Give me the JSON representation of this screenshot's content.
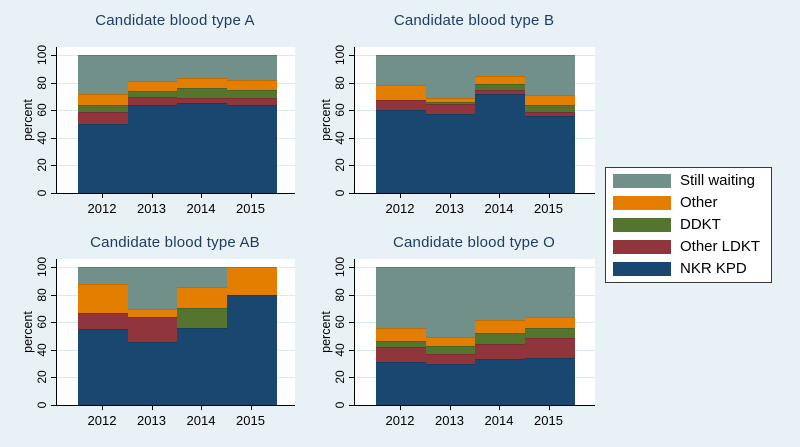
{
  "figure": {
    "background": "#e8f1f6",
    "plot_background": "#ffffff",
    "grid_color": "#dce9f2",
    "axis_color": "#000000",
    "title_color": "#1f3d63"
  },
  "axes": {
    "y_label": "percent",
    "y_ticks": [
      "0",
      "20",
      "40",
      "60",
      "80",
      "100"
    ],
    "x_ticks": [
      "2012",
      "2013",
      "2014",
      "2015"
    ]
  },
  "legend": {
    "items": [
      {
        "label": "Still waiting",
        "color": "#71908a"
      },
      {
        "label": "Other",
        "color": "#e37e00"
      },
      {
        "label": "DDKT",
        "color": "#55752f"
      },
      {
        "label": "Other LDKT",
        "color": "#90353b"
      },
      {
        "label": "NKR KPD",
        "color": "#1a476f"
      }
    ]
  },
  "chart_data": [
    {
      "type": "bar",
      "stacked": true,
      "title": "Candidate blood type A",
      "xlabel": "",
      "ylabel": "percent",
      "ylim": [
        0,
        100
      ],
      "grid": true,
      "categories": [
        "2012",
        "2013",
        "2014",
        "2015"
      ],
      "series": [
        {
          "name": "NKR KPD",
          "color": "#1a476f",
          "values": [
            50,
            63.5,
            65.5,
            64
          ]
        },
        {
          "name": "Other LDKT",
          "color": "#90353b",
          "values": [
            9,
            6,
            3.5,
            4.5
          ]
        },
        {
          "name": "DDKT",
          "color": "#55752f",
          "values": [
            5,
            4.5,
            7,
            6
          ]
        },
        {
          "name": "Other",
          "color": "#e37e00",
          "values": [
            7.5,
            7,
            7.5,
            7.5
          ]
        },
        {
          "name": "Still waiting",
          "color": "#71908a",
          "values": [
            28.5,
            19,
            16.5,
            18
          ]
        }
      ]
    },
    {
      "type": "bar",
      "stacked": true,
      "title": "Candidate blood type B",
      "xlabel": "",
      "ylabel": "percent",
      "ylim": [
        0,
        100
      ],
      "grid": true,
      "categories": [
        "2012",
        "2013",
        "2014",
        "2015"
      ],
      "series": [
        {
          "name": "NKR KPD",
          "color": "#1a476f",
          "values": [
            60.5,
            57,
            72,
            56
          ]
        },
        {
          "name": "Other LDKT",
          "color": "#90353b",
          "values": [
            7,
            7.5,
            3,
            3
          ]
        },
        {
          "name": "DDKT",
          "color": "#55752f",
          "values": [
            0,
            1.5,
            4,
            5
          ]
        },
        {
          "name": "Other",
          "color": "#e37e00",
          "values": [
            10.5,
            3,
            6,
            7
          ]
        },
        {
          "name": "Still waiting",
          "color": "#71908a",
          "values": [
            22,
            31,
            15,
            29
          ]
        }
      ]
    },
    {
      "type": "bar",
      "stacked": true,
      "title": "Candidate blood type AB",
      "xlabel": "",
      "ylabel": "percent",
      "ylim": [
        0,
        100
      ],
      "grid": true,
      "categories": [
        "2012",
        "2013",
        "2014",
        "2015"
      ],
      "series": [
        {
          "name": "NKR KPD",
          "color": "#1a476f",
          "values": [
            55,
            46,
            56,
            80
          ]
        },
        {
          "name": "Other LDKT",
          "color": "#90353b",
          "values": [
            12,
            18,
            0,
            0
          ]
        },
        {
          "name": "DDKT",
          "color": "#55752f",
          "values": [
            0,
            0,
            14,
            0
          ]
        },
        {
          "name": "Other",
          "color": "#e37e00",
          "values": [
            21,
            5.5,
            15.5,
            20
          ]
        },
        {
          "name": "Still waiting",
          "color": "#71908a",
          "values": [
            12,
            30.5,
            14.5,
            0
          ]
        }
      ]
    },
    {
      "type": "bar",
      "stacked": true,
      "title": "Candidate blood type O",
      "xlabel": "",
      "ylabel": "percent",
      "ylim": [
        0,
        100
      ],
      "grid": true,
      "categories": [
        "2012",
        "2013",
        "2014",
        "2015"
      ],
      "series": [
        {
          "name": "NKR KPD",
          "color": "#1a476f",
          "values": [
            31,
            30,
            33,
            34
          ]
        },
        {
          "name": "Other LDKT",
          "color": "#90353b",
          "values": [
            11,
            7,
            11.5,
            14.5
          ]
        },
        {
          "name": "DDKT",
          "color": "#55752f",
          "values": [
            4.5,
            6,
            8,
            7
          ]
        },
        {
          "name": "Other",
          "color": "#e37e00",
          "values": [
            9,
            6.5,
            9,
            8.5
          ]
        },
        {
          "name": "Still waiting",
          "color": "#71908a",
          "values": [
            44.5,
            50.5,
            38.5,
            36
          ]
        }
      ]
    }
  ]
}
